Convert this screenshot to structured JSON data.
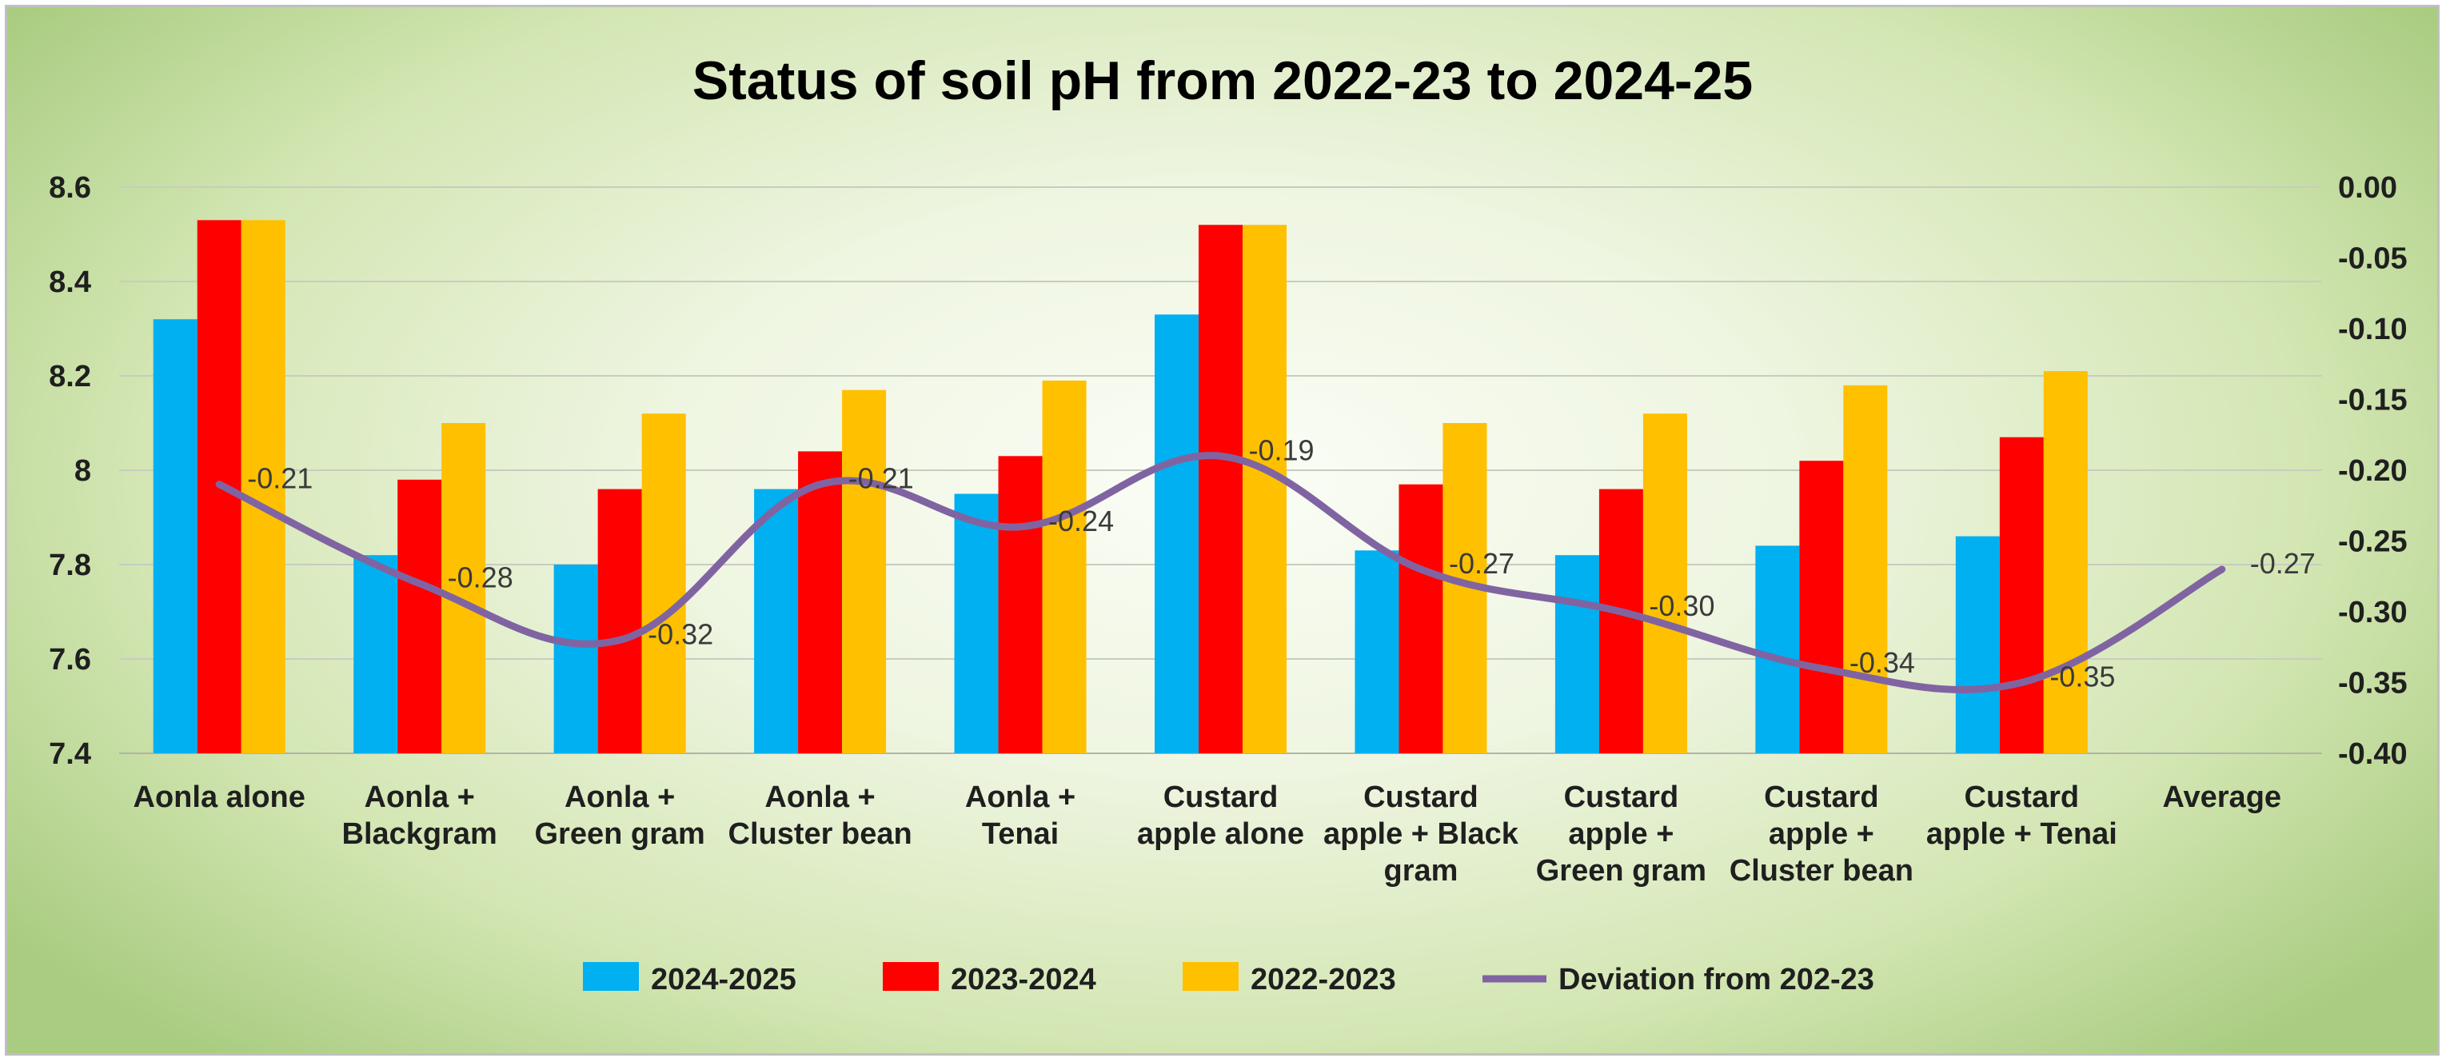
{
  "chart_data": {
    "type": "bar",
    "title": "Status of soil pH from 2022-23 to 2024-25",
    "categories": [
      [
        "Aonla alone"
      ],
      [
        "Aonla +",
        "Blackgram"
      ],
      [
        "Aonla +",
        "Green gram"
      ],
      [
        "Aonla +",
        "Cluster bean"
      ],
      [
        "Aonla +",
        "Tenai"
      ],
      [
        "Custard",
        "apple alone"
      ],
      [
        "Custard",
        "apple + Black",
        "gram"
      ],
      [
        "Custard",
        "apple +",
        "Green gram"
      ],
      [
        "Custard",
        "apple +",
        "Cluster bean"
      ],
      [
        "Custard",
        "apple + Tenai"
      ],
      [
        "Average"
      ]
    ],
    "series": [
      {
        "name": "2024-2025",
        "color": "#00b0f0",
        "axis": "primary",
        "values": [
          8.32,
          7.82,
          7.8,
          7.96,
          7.95,
          8.33,
          7.83,
          7.82,
          7.84,
          7.86,
          null
        ]
      },
      {
        "name": "2023-2024",
        "color": "#ff0000",
        "axis": "primary",
        "values": [
          8.53,
          7.98,
          7.96,
          8.04,
          8.03,
          8.52,
          7.97,
          7.96,
          8.02,
          8.07,
          null
        ]
      },
      {
        "name": "2022-2023",
        "color": "#ffc000",
        "axis": "primary",
        "values": [
          8.53,
          8.1,
          8.12,
          8.17,
          8.19,
          8.52,
          8.1,
          8.12,
          8.18,
          8.21,
          null
        ]
      },
      {
        "name": "Deviation from 202-23",
        "type": "line",
        "color": "#8064a2",
        "axis": "secondary",
        "values": [
          -0.21,
          -0.28,
          -0.32,
          -0.21,
          -0.24,
          -0.19,
          -0.27,
          -0.3,
          -0.34,
          -0.35,
          -0.27
        ],
        "data_labels": [
          "-0.21",
          "-0.28",
          "-0.32",
          "-0.21",
          "-0.24",
          "-0.19",
          "-0.27",
          "-0.30",
          "-0.34",
          "-0.35",
          "-0.27"
        ]
      }
    ],
    "y_left": {
      "min": 7.4,
      "max": 8.6,
      "step": 0.2,
      "tick_labels": [
        "7.4",
        "7.6",
        "7.8",
        "8",
        "8.2",
        "8.4",
        "8.6"
      ]
    },
    "y_right": {
      "min": -0.4,
      "max": 0.0,
      "step": 0.05,
      "tick_labels": [
        "-0.40",
        "-0.35",
        "-0.30",
        "-0.25",
        "-0.20",
        "-0.15",
        "-0.10",
        "-0.05",
        "0.00"
      ]
    },
    "grid": true,
    "legend_position": "bottom"
  }
}
